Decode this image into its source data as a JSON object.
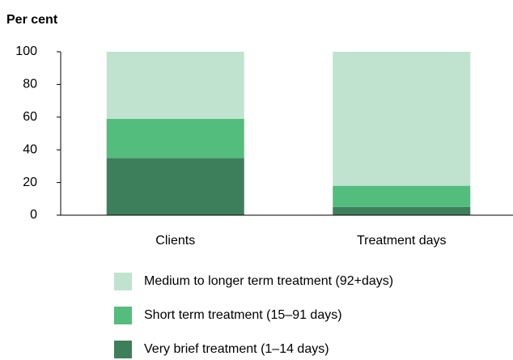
{
  "chart_data": {
    "type": "stacked_bar",
    "title": "Per cent",
    "categories": [
      "Clients",
      "Treatment days"
    ],
    "series": [
      {
        "name": "Very brief treatment (1–14 days)",
        "color": "#3e7f5b",
        "values": [
          35,
          5
        ]
      },
      {
        "name": "Short term treatment (15–91 days)",
        "color": "#53bd7d",
        "values": [
          24,
          13
        ]
      },
      {
        "name": "Medium to longer term treatment (92+days)",
        "color": "#bfe3cf",
        "values": [
          41,
          82
        ]
      }
    ],
    "ylim": [
      0,
      100
    ],
    "yticks": [
      0,
      20,
      40,
      60,
      80,
      100
    ],
    "grid": false,
    "legend": "bottom"
  }
}
